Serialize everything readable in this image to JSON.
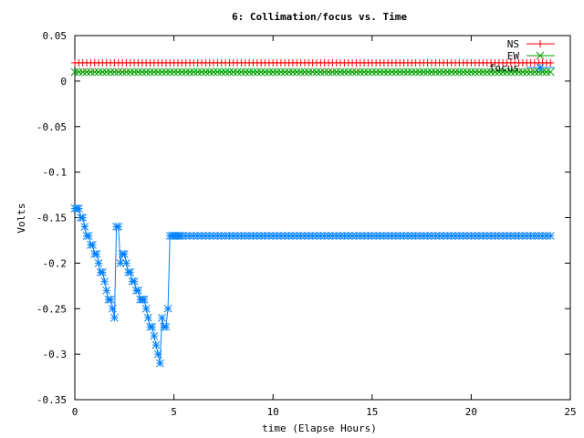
{
  "chart_data": {
    "type": "line",
    "title": "6: Collimation/focus vs. Time",
    "xlabel": "time (Elapse Hours)",
    "ylabel": "Volts",
    "xlim": [
      0,
      25
    ],
    "ylim": [
      -0.35,
      0.05
    ],
    "xticks": [
      0,
      5,
      10,
      15,
      20,
      25
    ],
    "yticks": [
      0.05,
      0,
      -0.05,
      -0.1,
      -0.15,
      -0.2,
      -0.25,
      -0.3,
      -0.35
    ],
    "xtick_labels": [
      "0",
      "5",
      "10",
      "15",
      "20",
      "25"
    ],
    "ytick_labels": [
      "0.05",
      "0",
      "-0.05",
      "-0.1",
      "-0.15",
      "-0.2",
      "-0.25",
      "-0.3",
      "-0.35"
    ],
    "grid": false,
    "legend_position": "top-right",
    "series": [
      {
        "name": "NS",
        "color": "#ff0000",
        "marker": "plus",
        "x": [
          0,
          24
        ],
        "y": [
          0.02,
          0.02
        ],
        "sample_step": 0.2
      },
      {
        "name": "EW",
        "color": "#00a000",
        "marker": "cross",
        "x": [
          0,
          24
        ],
        "y": [
          0.01,
          0.01
        ],
        "sample_step": 0.2
      },
      {
        "name": "focus",
        "color": "#0080ff",
        "marker": "asterisk",
        "x": [
          0,
          0.1,
          0.2,
          0.3,
          0.4,
          0.5,
          0.6,
          0.7,
          0.8,
          0.9,
          1.0,
          1.1,
          1.2,
          1.3,
          1.4,
          1.5,
          1.6,
          1.7,
          1.8,
          1.9,
          2.0,
          2.1,
          2.2,
          2.3,
          2.4,
          2.5,
          2.6,
          2.7,
          2.8,
          2.9,
          3.0,
          3.1,
          3.2,
          3.3,
          3.4,
          3.5,
          3.6,
          3.7,
          3.8,
          3.9,
          4.0,
          4.1,
          4.2,
          4.3,
          4.4,
          4.5,
          4.6,
          4.7,
          4.8,
          4.9,
          5.0,
          5.1,
          5.2,
          5.3,
          5.4
        ],
        "y": [
          -0.14,
          -0.14,
          -0.14,
          -0.15,
          -0.15,
          -0.16,
          -0.17,
          -0.17,
          -0.18,
          -0.18,
          -0.19,
          -0.19,
          -0.2,
          -0.21,
          -0.21,
          -0.22,
          -0.23,
          -0.24,
          -0.24,
          -0.25,
          -0.26,
          -0.16,
          -0.16,
          -0.2,
          -0.19,
          -0.19,
          -0.2,
          -0.21,
          -0.21,
          -0.22,
          -0.22,
          -0.23,
          -0.23,
          -0.24,
          -0.24,
          -0.24,
          -0.25,
          -0.26,
          -0.27,
          -0.27,
          -0.28,
          -0.29,
          -0.3,
          -0.31,
          -0.26,
          -0.27,
          -0.27,
          -0.25,
          -0.17,
          -0.17,
          -0.17,
          -0.17,
          -0.17,
          -0.17,
          -0.17
        ],
        "tail": {
          "from": 5.4,
          "to": 24,
          "y": -0.17,
          "step": 0.2
        }
      }
    ]
  }
}
